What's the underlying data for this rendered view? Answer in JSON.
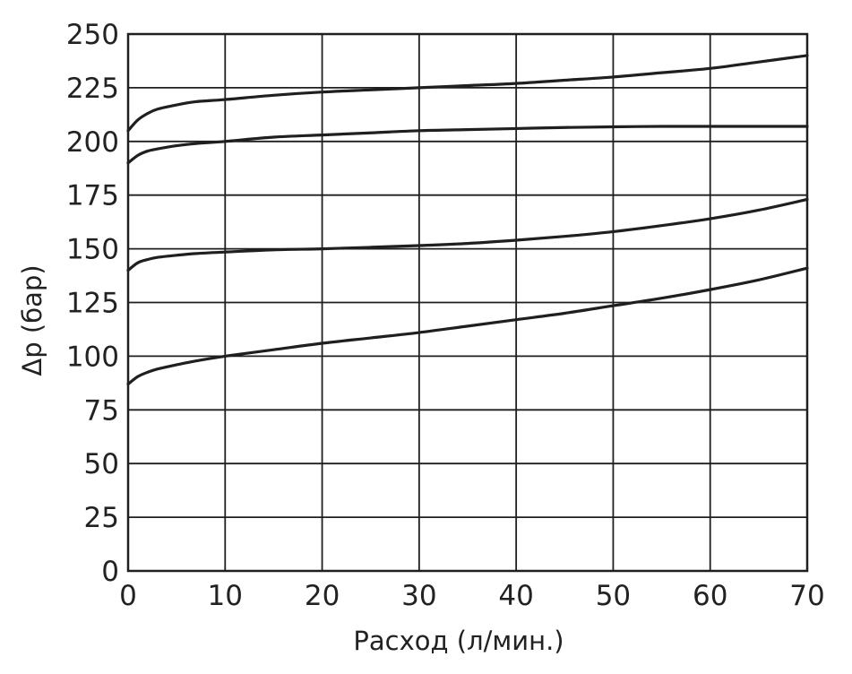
{
  "chart_data": {
    "type": "line",
    "title": "",
    "xlabel": "Расход (л/мин.)",
    "ylabel": "Δp (бар)",
    "xlim": [
      0,
      70
    ],
    "ylim": [
      0,
      250
    ],
    "xticks": [
      0,
      10,
      20,
      30,
      40,
      50,
      60,
      70
    ],
    "yticks": [
      0,
      25,
      50,
      75,
      100,
      125,
      150,
      175,
      200,
      225,
      250
    ],
    "grid": true,
    "legend": "none",
    "series": [
      {
        "x": [
          0,
          1,
          2,
          3,
          5,
          7,
          10,
          15,
          20,
          25,
          30,
          35,
          40,
          45,
          50,
          55,
          60,
          65,
          70
        ],
        "y": [
          205,
          210,
          213,
          215,
          217,
          218.5,
          219.5,
          221.5,
          223,
          224,
          225,
          226,
          227,
          228.5,
          230,
          232,
          234,
          237,
          240
        ]
      },
      {
        "x": [
          0,
          1,
          2,
          3,
          5,
          7,
          10,
          15,
          20,
          25,
          30,
          35,
          40,
          45,
          50,
          55,
          60,
          65,
          70
        ],
        "y": [
          190,
          193.5,
          195.5,
          196.5,
          198,
          199,
          200,
          202,
          203,
          204,
          205,
          205.5,
          206,
          206.5,
          206.8,
          207,
          207,
          207,
          207
        ]
      },
      {
        "x": [
          0,
          1,
          2,
          3,
          5,
          7,
          10,
          15,
          20,
          25,
          30,
          35,
          40,
          45,
          50,
          55,
          60,
          65,
          70
        ],
        "y": [
          140,
          143.5,
          145,
          146,
          147,
          147.8,
          148.5,
          149.5,
          150,
          150.7,
          151.5,
          152.5,
          154,
          155.8,
          158,
          160.8,
          164,
          168,
          173
        ]
      },
      {
        "x": [
          0,
          1,
          2,
          3,
          5,
          7,
          10,
          15,
          20,
          25,
          30,
          35,
          40,
          45,
          50,
          55,
          60,
          65,
          70
        ],
        "y": [
          87,
          90.5,
          92.5,
          94,
          96,
          97.8,
          100,
          103,
          106,
          108.5,
          111,
          114,
          117,
          120,
          123.5,
          127,
          131,
          135.5,
          141
        ]
      }
    ],
    "colors": {
      "line": "#1f1f1f",
      "grid": "#1f1f1f",
      "text": "#222222"
    }
  }
}
